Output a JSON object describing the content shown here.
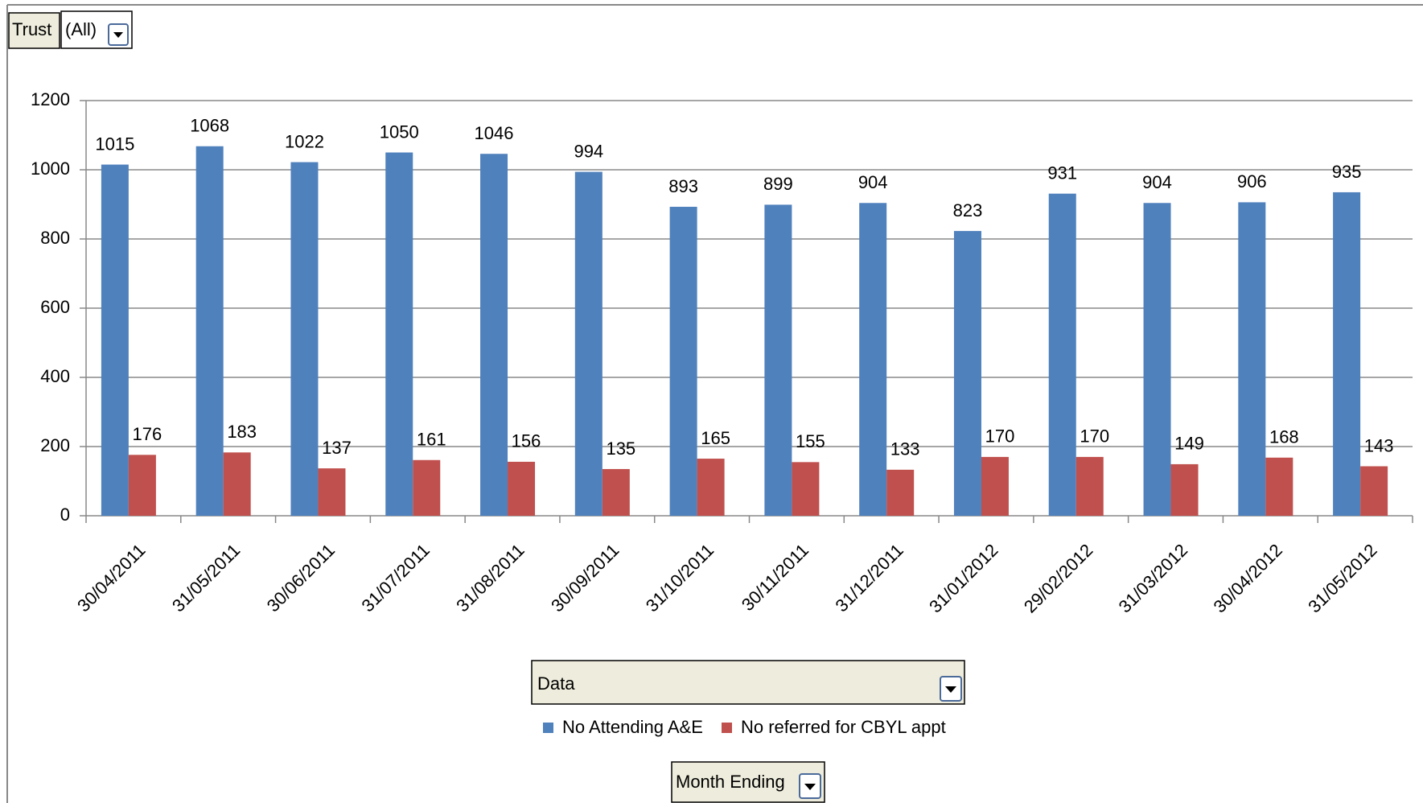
{
  "chart_data": {
    "type": "bar",
    "filter_field": "Trust",
    "filter_value": "(All)",
    "data_field": "Data",
    "axis_field": "Month Ending",
    "categories": [
      "30/04/2011",
      "31/05/2011",
      "30/06/2011",
      "31/07/2011",
      "31/08/2011",
      "30/09/2011",
      "31/10/2011",
      "30/11/2011",
      "31/12/2011",
      "31/01/2012",
      "29/02/2012",
      "31/03/2012",
      "30/04/2012",
      "31/05/2012"
    ],
    "series": [
      {
        "name": "No Attending A&E",
        "color": "#4f81bd",
        "values": [
          1015,
          1068,
          1022,
          1050,
          1046,
          994,
          893,
          899,
          904,
          823,
          931,
          904,
          906,
          935
        ]
      },
      {
        "name": "No referred for CBYL appt",
        "color": "#c0504d",
        "values": [
          176,
          183,
          137,
          161,
          156,
          135,
          165,
          155,
          133,
          170,
          170,
          149,
          168,
          143
        ]
      }
    ],
    "ylim": [
      0,
      1200
    ],
    "yticks": [
      0,
      200,
      400,
      600,
      800,
      1000,
      1200
    ],
    "grid": true
  }
}
